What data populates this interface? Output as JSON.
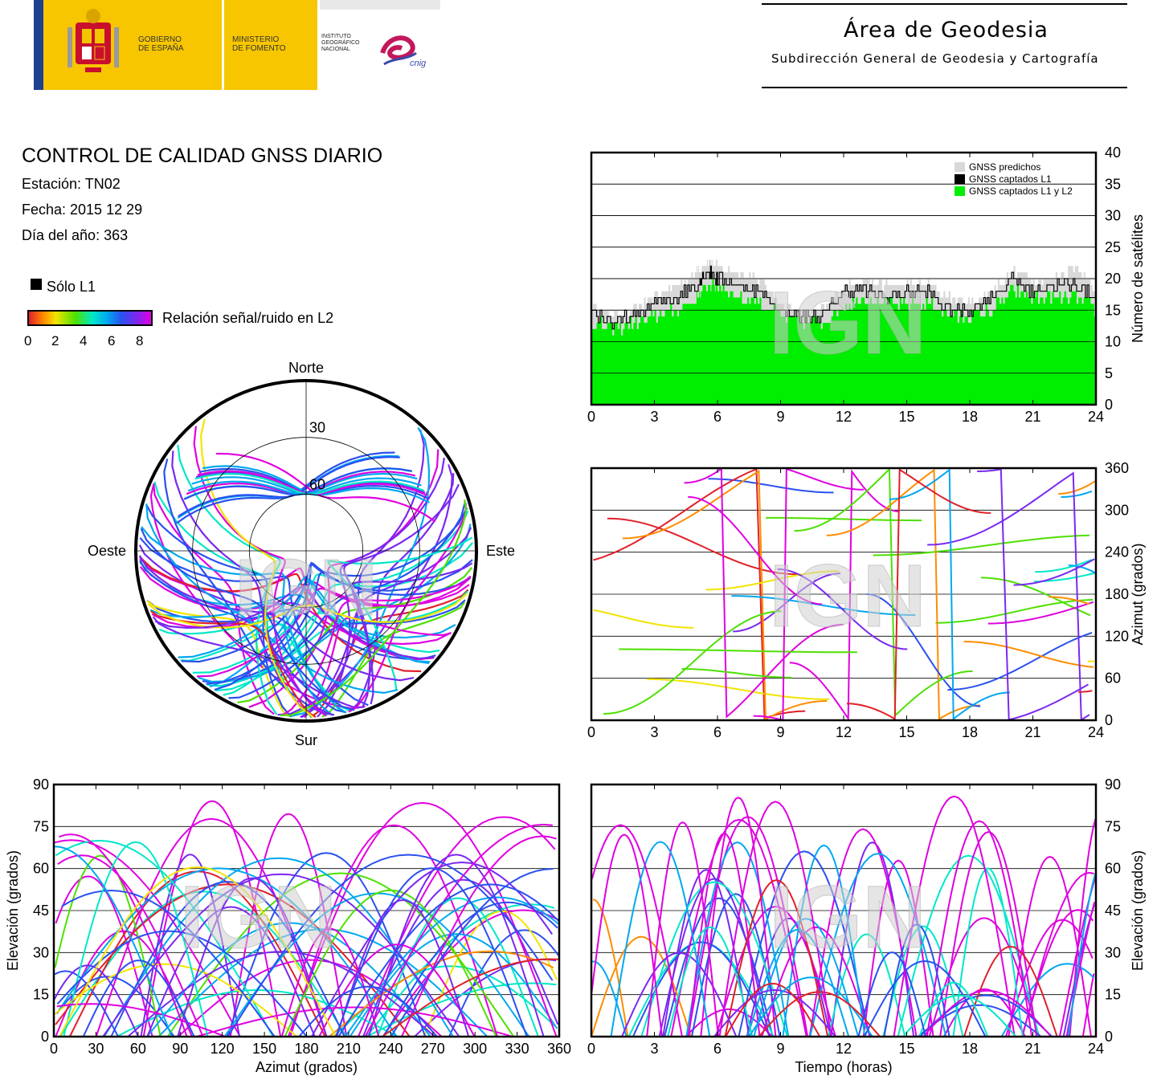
{
  "header": {
    "gov_label": "GOBIERNO\nDE ESPAÑA",
    "ministry_label": "MINISTERIO\nDE FOMENTO",
    "institute_label": "INSTITUTO\nGEOGRÁFICO\nNACIONAL",
    "cnig_label": "cnig",
    "area_title": "Área de Geodesia",
    "area_subtitle": "Subdirección General de Geodesia y Cartografía"
  },
  "info": {
    "title": "CONTROL DE CALIDAD GNSS DIARIO",
    "station": "Estación: TN02",
    "date": "Fecha: 2015 12 29",
    "doy": "Día del año: 363",
    "legend_l1": "Sólo L1",
    "colorbar_label": "Relación señal/ruido en L2",
    "colorbar_ticks": [
      "0",
      "2",
      "4",
      "6",
      "8"
    ]
  },
  "watermark": "IGN",
  "colors": {
    "predicted": "#d8d8d8",
    "l1": "#000000",
    "l1l2": "#00ee00",
    "snr_scale": [
      "#e0202a",
      "#ff8c00",
      "#f2e400",
      "#4de000",
      "#00e8c8",
      "#00a8f0",
      "#2a50f0",
      "#7a28f0",
      "#e000e0"
    ]
  },
  "chart_data": [
    {
      "type": "area",
      "id": "satellites",
      "ylabel": "Número de satélites",
      "xlim": [
        0,
        24
      ],
      "ylim": [
        0,
        40
      ],
      "xticks": [
        "0",
        "3",
        "6",
        "9",
        "12",
        "15",
        "18",
        "21",
        "24"
      ],
      "yticks": [
        "0",
        "5",
        "10",
        "15",
        "20",
        "25",
        "30",
        "35",
        "40"
      ],
      "grid": true,
      "legend_position": "top-right",
      "series": [
        {
          "name": "GNSS predichos",
          "x": [
            0,
            1,
            2,
            3,
            4,
            5,
            5.5,
            6,
            7,
            8,
            9,
            10,
            11,
            12,
            13,
            14,
            15,
            16,
            17,
            18,
            19,
            20,
            21,
            22,
            23,
            24
          ],
          "values": [
            16,
            14,
            15,
            17,
            19,
            21,
            23,
            22,
            21,
            20,
            16,
            14,
            15,
            19,
            20,
            19,
            19,
            19,
            17,
            16,
            18,
            21,
            20,
            20,
            22,
            18
          ]
        },
        {
          "name": "GNSS captados L1",
          "x": [
            0,
            1,
            2,
            3,
            4,
            5,
            5.5,
            6,
            7,
            8,
            9,
            10,
            11,
            12,
            13,
            14,
            15,
            16,
            17,
            18,
            19,
            20,
            21,
            22,
            23,
            24
          ],
          "values": [
            15,
            13,
            14,
            16,
            17,
            19,
            21,
            20,
            19,
            18,
            15,
            14,
            14,
            18,
            18,
            17,
            18,
            18,
            15,
            15,
            17,
            20,
            18,
            19,
            19,
            17
          ]
        },
        {
          "name": "GNSS captados L1 y L2",
          "x": [
            0,
            1,
            2,
            3,
            4,
            5,
            5.5,
            6,
            7,
            8,
            9,
            10,
            11,
            12,
            13,
            14,
            15,
            16,
            17,
            18,
            19,
            20,
            21,
            22,
            23,
            24
          ],
          "values": [
            13,
            12,
            13,
            14,
            15,
            17,
            19,
            19,
            17,
            16,
            14,
            13,
            13,
            16,
            17,
            16,
            16,
            16,
            14,
            14,
            15,
            18,
            17,
            17,
            17,
            15
          ]
        }
      ]
    },
    {
      "type": "scatter",
      "id": "azimuth_time",
      "ylabel": "Azimut (grados)",
      "xlim": [
        0,
        24
      ],
      "ylim": [
        0,
        360
      ],
      "xticks": [
        "0",
        "3",
        "6",
        "9",
        "12",
        "15",
        "18",
        "21",
        "24"
      ],
      "yticks": [
        "0",
        "60",
        "120",
        "180",
        "240",
        "300",
        "360"
      ],
      "grid": true
    },
    {
      "type": "scatter",
      "id": "skyplot",
      "directions": {
        "north": "Norte",
        "south": "Sur",
        "west": "Oeste",
        "east": "Este"
      },
      "rings": [
        "30",
        "60"
      ],
      "rlim": [
        0,
        90
      ]
    },
    {
      "type": "scatter",
      "id": "elev_azimuth",
      "xlabel": "Azimut (grados)",
      "ylabel": "Elevación (grados)",
      "xlim": [
        0,
        360
      ],
      "ylim": [
        0,
        90
      ],
      "xticks": [
        "0",
        "30",
        "60",
        "90",
        "120",
        "150",
        "180",
        "210",
        "240",
        "270",
        "300",
        "330",
        "360"
      ],
      "yticks": [
        "0",
        "15",
        "30",
        "45",
        "60",
        "75",
        "90"
      ],
      "grid": true
    },
    {
      "type": "scatter",
      "id": "elev_time",
      "xlabel": "Tiempo (horas)",
      "ylabel": "Elevación (grados)",
      "xlim": [
        0,
        24
      ],
      "ylim": [
        0,
        90
      ],
      "xticks": [
        "0",
        "3",
        "6",
        "9",
        "12",
        "15",
        "18",
        "21",
        "24"
      ],
      "yticks": [
        "0",
        "15",
        "30",
        "45",
        "60",
        "75",
        "90"
      ],
      "grid": true
    }
  ]
}
